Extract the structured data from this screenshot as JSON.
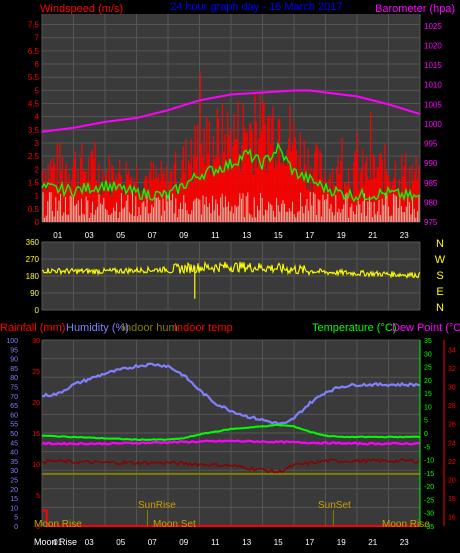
{
  "top_panel": {
    "title_left": "Windspeed (m/s)",
    "title_center": "24 hour graph day - 16 March 2017",
    "title_right": "Barometer (hpa)"
  },
  "mid_panel": {
    "compass": [
      "N",
      "W",
      "S",
      "E",
      "N"
    ]
  },
  "bottom_panel": {
    "legend_rainfall": "Rainfall (mm)",
    "legend_humidity": "Humidity (%)",
    "legend_indoor_hum": "Indoor hum",
    "legend_indoor_temp": "Indoor temp",
    "legend_temperature": "Temperature (°C)",
    "legend_dewpoint": "Dew Point (°C)",
    "event_moonrise_start": "Moon Rise",
    "event_sunrise": "SunRise",
    "event_moonset": "Moon Set",
    "event_sunset": "SunSet",
    "event_moonrise_end": "Moon Rise",
    "bottom_label": "Moon Rise"
  },
  "colors": {
    "windspeed": "#ff0000",
    "gust": "#ffffff",
    "avg_wind": "#00ff00",
    "barometer": "#ff00ff",
    "direction": "#ffff00",
    "rainfall": "#ff0000",
    "humidity": "#8080ff",
    "indoor_hum": "#808000",
    "indoor_temp": "#8b0000",
    "temperature": "#00ff00",
    "dewpoint": "#ff00ff"
  },
  "chart_data": [
    {
      "type": "line",
      "name": "wind-barometer",
      "x_ticks": [
        "01",
        "03",
        "05",
        "07",
        "09",
        "11",
        "13",
        "15",
        "17",
        "19",
        "21",
        "23"
      ],
      "x_range": [
        0,
        24
      ],
      "left_axis": {
        "ticks": [
          "0",
          "0.5",
          "1",
          "1.5",
          "2",
          "2.5",
          "3",
          "3.5",
          "4",
          "4.5",
          "5",
          "5.5",
          "6",
          "6.5",
          "7",
          "7.5"
        ],
        "range": [
          0,
          7.9
        ]
      },
      "right_axis": {
        "ticks": [
          "975",
          "980",
          "985",
          "990",
          "995",
          "1000",
          "1005",
          "1010",
          "1015",
          "1020",
          "1025"
        ],
        "range": [
          975,
          1028
        ]
      },
      "barometer": {
        "x": [
          0,
          2,
          4,
          6,
          8,
          10,
          12,
          14,
          16,
          17,
          18,
          20,
          22,
          24
        ],
        "y": [
          998,
          999,
          1000.5,
          1001.5,
          1003.5,
          1006,
          1007.5,
          1008,
          1008.5,
          1008.5,
          1008,
          1007,
          1005,
          1002.5
        ]
      },
      "wind_avg": {
        "x": [
          0,
          2,
          4,
          6,
          8,
          10,
          12,
          13,
          14,
          15,
          16,
          17,
          18,
          19,
          20,
          22,
          24
        ],
        "y": [
          1.3,
          1.2,
          1.4,
          1.1,
          1.0,
          1.8,
          2.2,
          2.6,
          2.2,
          2.8,
          1.9,
          1.6,
          1.3,
          1.1,
          1.0,
          1.1,
          0.9
        ]
      },
      "gust_envelope": {
        "x": [
          0,
          2,
          4,
          6,
          8,
          10,
          12,
          13,
          14,
          15,
          16,
          17,
          18,
          20,
          22,
          24
        ],
        "y": [
          3.0,
          3.2,
          2.7,
          2.6,
          2.3,
          4.2,
          4.8,
          5.2,
          5.0,
          5.8,
          4.4,
          3.3,
          2.7,
          2.8,
          3.0,
          2.6
        ]
      }
    },
    {
      "type": "line",
      "name": "wind-direction",
      "left_axis": {
        "ticks": [
          "0",
          "90",
          "180",
          "270",
          "360"
        ],
        "range": [
          0,
          360
        ]
      },
      "direction": {
        "x": [
          0,
          2,
          4,
          6,
          8,
          10,
          12,
          14,
          16,
          18,
          20,
          22,
          24
        ],
        "y": [
          210,
          205,
          205,
          210,
          215,
          225,
          230,
          225,
          215,
          200,
          195,
          190,
          185
        ]
      }
    },
    {
      "type": "line",
      "name": "temperature-humidity",
      "x_ticks": [
        "01",
        "03",
        "05",
        "07",
        "09",
        "11",
        "13",
        "15",
        "17",
        "19",
        "21",
        "23"
      ],
      "humidity_axis": {
        "ticks": [
          "0",
          "5",
          "10",
          "15",
          "20",
          "25",
          "30",
          "35",
          "40",
          "45",
          "50",
          "55",
          "60",
          "65",
          "70",
          "75",
          "80",
          "85",
          "90",
          "95",
          "100"
        ],
        "range": [
          0,
          100
        ]
      },
      "rain_axis": {
        "ticks": [
          "0",
          "5",
          "10",
          "15",
          "20",
          "25",
          "30"
        ],
        "range": [
          0,
          30
        ]
      },
      "temp_axis": {
        "ticks": [
          "-35",
          "-30",
          "-25",
          "-20",
          "-15",
          "-10",
          "-5",
          "0",
          "5",
          "10",
          "15",
          "20",
          "25",
          "30",
          "35"
        ],
        "range": [
          -35,
          35
        ]
      },
      "indoor_axis": {
        "ticks": [
          "16",
          "18",
          "20",
          "22",
          "24",
          "26",
          "28",
          "30",
          "32",
          "34"
        ],
        "range": [
          15,
          35
        ]
      },
      "humidity": {
        "x": [
          0,
          1,
          2,
          3,
          4,
          5,
          6,
          7,
          8,
          9,
          10,
          11,
          12,
          13,
          14,
          15,
          15.5,
          16,
          17,
          18,
          19,
          20,
          21,
          22,
          23,
          24
        ],
        "y": [
          70,
          71,
          76,
          79,
          82,
          84,
          86,
          87,
          86,
          81,
          73,
          66,
          62,
          59,
          57,
          55,
          55,
          58,
          66,
          72,
          75,
          76,
          76,
          76,
          76,
          76
        ]
      },
      "temperature": {
        "x": [
          0,
          2,
          4,
          6,
          8,
          9,
          10,
          11,
          12,
          13,
          14,
          15,
          16,
          17,
          18,
          19,
          20,
          22,
          24
        ],
        "y": [
          -1,
          -1.5,
          -2,
          -2.5,
          -2.5,
          -2,
          -0.5,
          0.5,
          1.5,
          2,
          2.5,
          3,
          2.5,
          0.5,
          -1,
          -1.5,
          -1.5,
          -1.5,
          -1.5
        ]
      },
      "dewpoint": {
        "x": [
          0,
          4,
          8,
          12,
          16,
          20,
          24
        ],
        "y": [
          -4,
          -4,
          -3.5,
          -3,
          -3.5,
          -4,
          -4
        ]
      },
      "indoor_temp": {
        "x": [
          0,
          4,
          8,
          12,
          15,
          16,
          18,
          20,
          24
        ],
        "y": [
          22,
          21.8,
          21.8,
          21.5,
          20.8,
          21.5,
          22,
          22,
          22
        ]
      },
      "indoor_hum": {
        "x": [
          0,
          24
        ],
        "y": [
          28,
          28
        ]
      },
      "rainfall": {
        "x": [
          0,
          0.3,
          0.3,
          24
        ],
        "y": [
          2.5,
          2.5,
          0,
          0
        ]
      }
    }
  ]
}
